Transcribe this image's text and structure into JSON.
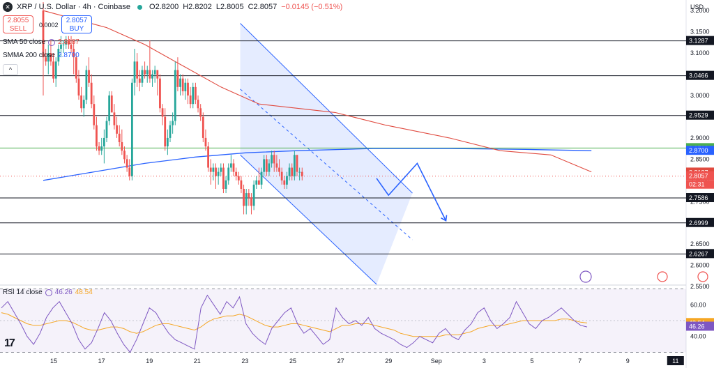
{
  "header": {
    "pair": "XRP / U.S. Dollar · 4h · Coinbase",
    "open": "O2.8200",
    "high": "H2.8202",
    "low": "L2.8005",
    "close": "C2.8057",
    "change": "−0.0145 (−0.51%)"
  },
  "trade": {
    "sell_price": "2.8055",
    "sell_label": "SELL",
    "spread": "0.0002",
    "buy_price": "2.8057",
    "buy_label": "BUY"
  },
  "indicators": {
    "sma50_label": "SMA 50 close",
    "sma50_value": "2.8187",
    "smma200_label": "SMMA 200 close",
    "smma200_value": "2.8700",
    "rsi_label": "RSI 14 close",
    "rsi_value": "46.26",
    "rsi_ma_value": "48.54"
  },
  "collapse_glyph": "^",
  "tv_logo": "17",
  "colors": {
    "up": "#26a69a",
    "down": "#ef5350",
    "sma50": "#e04a3f",
    "smma200": "#2962ff",
    "channel": "#2962ff",
    "rsi": "#7e57c2",
    "rsi_ma": "#f5a623"
  },
  "chart_data": [
    {
      "type": "candlestick",
      "currency": "USD",
      "x_ticks": [
        "15",
        "17",
        "19",
        "21",
        "23",
        "25",
        "27",
        "29",
        "Sep",
        "3",
        "5",
        "7",
        "9",
        "11"
      ],
      "price_ticks": [
        "3.2000",
        "3.1500",
        "3.1000",
        "3.0500",
        "3.0000",
        "2.9500",
        "2.9000",
        "2.8500",
        "2.8000",
        "2.7500",
        "2.7000",
        "2.6500",
        "2.6000",
        "2.5500"
      ],
      "ylim": [
        2.555,
        3.225
      ],
      "candles": [
        [
          3.2,
          3.22,
          3.0,
          3.09
        ],
        [
          3.09,
          3.11,
          3.07,
          3.08
        ],
        [
          3.08,
          3.12,
          3.05,
          3.1
        ],
        [
          3.1,
          3.13,
          3.07,
          3.08
        ],
        [
          3.08,
          3.1,
          3.03,
          3.04
        ],
        [
          3.04,
          3.09,
          3.02,
          3.08
        ],
        [
          3.08,
          3.12,
          3.07,
          3.11
        ],
        [
          3.11,
          3.14,
          3.09,
          3.12
        ],
        [
          3.12,
          3.13,
          3.1,
          3.12
        ],
        [
          3.12,
          3.14,
          3.11,
          3.13
        ],
        [
          3.13,
          3.14,
          3.11,
          3.12
        ],
        [
          3.12,
          3.14,
          3.1,
          3.11
        ],
        [
          3.11,
          3.13,
          3.05,
          3.09
        ],
        [
          3.09,
          3.1,
          3.03,
          3.04
        ],
        [
          3.04,
          3.06,
          2.99,
          3.0
        ],
        [
          3.0,
          3.02,
          2.96,
          2.97
        ],
        [
          2.97,
          3.0,
          2.95,
          2.99
        ],
        [
          2.99,
          3.07,
          2.98,
          3.06
        ],
        [
          3.06,
          3.09,
          3.02,
          3.03
        ],
        [
          3.03,
          3.05,
          2.97,
          2.98
        ],
        [
          2.98,
          3.0,
          2.92,
          2.93
        ],
        [
          2.93,
          2.95,
          2.87,
          2.88
        ],
        [
          2.88,
          2.89,
          2.86,
          2.87
        ],
        [
          2.87,
          2.9,
          2.86,
          2.88
        ],
        [
          2.88,
          2.92,
          2.84,
          2.9
        ],
        [
          2.9,
          2.95,
          2.89,
          2.94
        ],
        [
          2.94,
          3.01,
          2.93,
          3.0
        ],
        [
          3.0,
          3.01,
          2.96,
          2.96
        ],
        [
          2.96,
          2.98,
          2.92,
          2.93
        ],
        [
          2.93,
          2.95,
          2.9,
          2.91
        ],
        [
          2.91,
          2.93,
          2.88,
          2.89
        ],
        [
          2.89,
          2.92,
          2.86,
          2.87
        ],
        [
          2.87,
          2.88,
          2.84,
          2.85
        ],
        [
          2.85,
          2.86,
          2.82,
          2.83
        ],
        [
          2.83,
          2.85,
          2.8,
          2.81
        ],
        [
          2.81,
          3.04,
          2.8,
          3.03
        ],
        [
          3.03,
          3.11,
          3.0,
          3.08
        ],
        [
          3.08,
          3.1,
          3.02,
          3.04
        ],
        [
          3.04,
          3.06,
          3.01,
          3.03
        ],
        [
          3.03,
          3.07,
          3.02,
          3.06
        ],
        [
          3.06,
          3.08,
          3.04,
          3.05
        ],
        [
          3.05,
          3.07,
          3.03,
          3.06
        ],
        [
          3.06,
          3.13,
          3.03,
          3.04
        ],
        [
          3.04,
          3.06,
          3.02,
          3.05
        ],
        [
          3.05,
          3.07,
          3.03,
          3.06
        ],
        [
          3.06,
          3.06,
          3.0,
          3.04
        ],
        [
          3.04,
          3.05,
          2.96,
          2.97
        ],
        [
          2.97,
          2.98,
          2.93,
          2.95
        ],
        [
          2.95,
          2.97,
          2.87,
          2.88
        ],
        [
          2.88,
          2.92,
          2.86,
          2.9
        ],
        [
          2.9,
          2.94,
          2.89,
          2.93
        ],
        [
          2.93,
          2.96,
          2.91,
          2.94
        ],
        [
          2.94,
          3.08,
          2.93,
          3.06
        ],
        [
          3.06,
          3.09,
          3.01,
          3.02
        ],
        [
          3.02,
          3.05,
          3.0,
          3.04
        ],
        [
          3.04,
          3.05,
          3.0,
          3.01
        ],
        [
          3.01,
          3.04,
          2.99,
          3.03
        ],
        [
          3.03,
          3.04,
          2.98,
          3.0
        ],
        [
          3.0,
          3.02,
          2.97,
          2.98
        ],
        [
          2.98,
          3.03,
          2.97,
          3.02
        ],
        [
          3.02,
          3.03,
          2.98,
          2.99
        ],
        [
          2.99,
          3.0,
          2.96,
          2.97
        ],
        [
          2.97,
          2.98,
          2.94,
          2.95
        ],
        [
          2.95,
          2.96,
          2.89,
          2.9
        ],
        [
          2.9,
          2.92,
          2.87,
          2.88
        ],
        [
          2.88,
          2.89,
          2.82,
          2.83
        ],
        [
          2.83,
          2.85,
          2.79,
          2.82
        ],
        [
          2.82,
          2.84,
          2.8,
          2.83
        ],
        [
          2.83,
          2.84,
          2.78,
          2.81
        ],
        [
          2.81,
          2.83,
          2.79,
          2.82
        ],
        [
          2.82,
          2.84,
          2.81,
          2.83
        ],
        [
          2.83,
          2.84,
          2.77,
          2.78
        ],
        [
          2.78,
          2.81,
          2.77,
          2.8
        ],
        [
          2.8,
          2.84,
          2.79,
          2.83
        ],
        [
          2.83,
          2.86,
          2.82,
          2.84
        ],
        [
          2.84,
          2.85,
          2.81,
          2.82
        ],
        [
          2.82,
          2.83,
          2.8,
          2.81
        ],
        [
          2.81,
          2.82,
          2.79,
          2.8
        ],
        [
          2.8,
          2.81,
          2.77,
          2.78
        ],
        [
          2.78,
          2.79,
          2.72,
          2.74
        ],
        [
          2.74,
          2.78,
          2.72,
          2.77
        ],
        [
          2.77,
          2.78,
          2.74,
          2.76
        ],
        [
          2.76,
          2.77,
          2.72,
          2.74
        ],
        [
          2.74,
          2.8,
          2.73,
          2.79
        ],
        [
          2.79,
          2.81,
          2.78,
          2.8
        ],
        [
          2.8,
          2.83,
          2.79,
          2.79
        ],
        [
          2.79,
          2.83,
          2.78,
          2.82
        ],
        [
          2.82,
          2.86,
          2.81,
          2.85
        ],
        [
          2.85,
          2.86,
          2.81,
          2.82
        ],
        [
          2.82,
          2.85,
          2.81,
          2.84
        ],
        [
          2.84,
          2.87,
          2.83,
          2.86
        ],
        [
          2.86,
          2.87,
          2.82,
          2.84
        ],
        [
          2.84,
          2.86,
          2.82,
          2.83
        ],
        [
          2.83,
          2.85,
          2.81,
          2.82
        ],
        [
          2.82,
          2.83,
          2.79,
          2.8
        ],
        [
          2.8,
          2.81,
          2.78,
          2.79
        ],
        [
          2.79,
          2.82,
          2.78,
          2.81
        ],
        [
          2.81,
          2.84,
          2.8,
          2.83
        ],
        [
          2.83,
          2.84,
          2.8,
          2.81
        ],
        [
          2.81,
          2.87,
          2.8,
          2.86
        ],
        [
          2.86,
          2.86,
          2.81,
          2.82
        ],
        [
          2.82,
          2.83,
          2.8,
          2.82
        ],
        [
          2.82,
          2.83,
          2.8,
          2.81
        ]
      ],
      "sma50": [
        [
          0,
          3.2
        ],
        [
          25,
          3.16
        ],
        [
          40,
          3.12
        ],
        [
          55,
          3.07
        ],
        [
          70,
          3.02
        ],
        [
          85,
          2.98
        ],
        [
          100,
          2.97
        ],
        [
          115,
          2.96
        ],
        [
          135,
          2.93
        ],
        [
          160,
          2.9
        ],
        [
          180,
          2.87
        ],
        [
          200,
          2.86
        ],
        [
          216,
          2.82
        ]
      ],
      "smma200": [
        [
          0,
          2.8
        ],
        [
          20,
          2.82
        ],
        [
          40,
          2.84
        ],
        [
          60,
          2.855
        ],
        [
          80,
          2.865
        ],
        [
          100,
          2.87
        ],
        [
          130,
          2.875
        ],
        [
          160,
          2.875
        ],
        [
          190,
          2.873
        ],
        [
          216,
          2.87
        ]
      ],
      "levels": [
        3.1287,
        3.0466,
        2.9529,
        2.7586,
        2.6999,
        2.6267
      ],
      "level_labels": [
        "3.1287",
        "3.0466",
        "2.9529",
        "2.7586",
        "2.6999",
        "2.6267"
      ],
      "green_level": 2.8763,
      "green_level_label": "2.8763",
      "smma200_label": "2.8700",
      "sma50_label": "2.8187",
      "last_price_label": "2.8057",
      "countdown": "02:31",
      "channel": {
        "upper": [
          [
            22.8,
            3.17
          ],
          [
            30.0,
            2.77
          ]
        ],
        "lower": [
          [
            22.8,
            2.86
          ],
          [
            28.5,
            2.555
          ]
        ],
        "mid": [
          [
            22.8,
            3.015
          ],
          [
            30.0,
            2.66
          ]
        ]
      },
      "projection": [
        [
          28.5,
          2.805
        ],
        [
          29.0,
          2.765
        ],
        [
          30.2,
          2.84
        ],
        [
          31.4,
          2.705
        ]
      ]
    },
    {
      "type": "line",
      "title": "RSI 14 close",
      "y_ticks": [
        "60.00",
        "40.00"
      ],
      "ylim": [
        28,
        72
      ],
      "bands": [
        70,
        30
      ],
      "rsi": [
        58,
        62,
        55,
        48,
        40,
        35,
        42,
        52,
        58,
        62,
        55,
        48,
        38,
        32,
        36,
        45,
        55,
        50,
        42,
        35,
        30,
        38,
        48,
        58,
        55,
        48,
        42,
        38,
        36,
        34,
        32,
        58,
        66,
        60,
        54,
        62,
        58,
        65,
        48,
        42,
        38,
        35,
        45,
        50,
        55,
        58,
        48,
        42,
        45,
        40,
        35,
        38,
        58,
        52,
        48,
        50,
        47,
        52,
        45,
        42,
        40,
        38,
        35,
        33,
        36,
        40,
        38,
        36,
        42,
        45,
        40,
        38,
        44,
        48,
        55,
        58,
        50,
        45,
        48,
        52,
        62,
        55,
        48,
        45,
        50,
        52,
        55,
        58,
        54,
        50,
        47,
        46
      ],
      "rsi_ma": [
        55,
        54,
        52,
        50,
        48,
        47,
        47,
        48,
        49,
        50,
        50,
        49,
        47,
        45,
        44,
        44,
        45,
        46,
        46,
        45,
        43,
        42,
        43,
        45,
        47,
        48,
        48,
        47,
        46,
        45,
        44,
        46,
        49,
        51,
        52,
        53,
        53,
        54,
        53,
        51,
        49,
        47,
        46,
        46,
        47,
        48,
        48,
        47,
        46,
        45,
        44,
        43,
        45,
        47,
        47,
        48,
        48,
        48,
        47,
        46,
        45,
        44,
        42,
        41,
        40,
        40,
        40,
        40,
        40,
        41,
        41,
        41,
        42,
        43,
        45,
        46,
        47,
        47,
        47,
        48,
        49,
        50,
        50,
        50,
        50,
        50,
        50,
        51,
        51,
        50,
        49,
        48.5
      ]
    }
  ]
}
